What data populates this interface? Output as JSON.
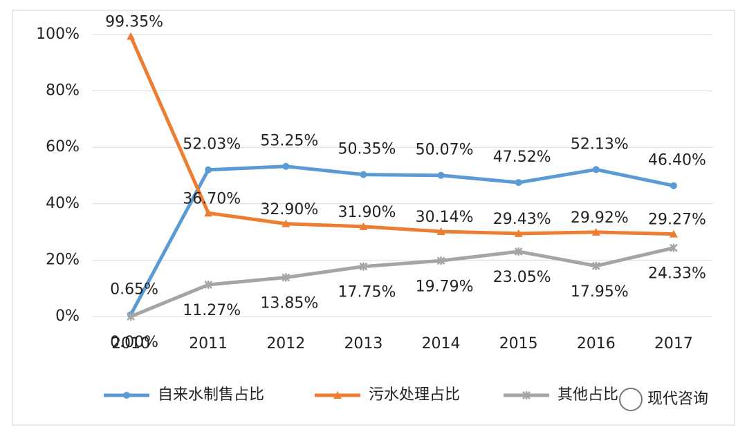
{
  "chart_data": {
    "type": "line",
    "categories": [
      "2010",
      "2011",
      "2012",
      "2013",
      "2014",
      "2015",
      "2016",
      "2017"
    ],
    "series": [
      {
        "name": "自来水制售占比",
        "color": "#5b9bd5",
        "marker": "circle",
        "values": [
          0.65,
          52.03,
          53.25,
          50.35,
          50.07,
          47.52,
          52.13,
          46.4
        ],
        "value_labels": [
          "0.65%",
          "52.03%",
          "53.25%",
          "50.35%",
          "50.07%",
          "47.52%",
          "52.13%",
          "46.40%"
        ]
      },
      {
        "name": "污水处理占比",
        "color": "#ed7d31",
        "marker": "triangle",
        "values": [
          99.35,
          36.7,
          32.9,
          31.9,
          30.14,
          29.43,
          29.92,
          29.27
        ],
        "value_labels": [
          "99.35%",
          "36.70%",
          "32.90%",
          "31.90%",
          "30.14%",
          "29.43%",
          "29.92%",
          "29.27%"
        ]
      },
      {
        "name": "其他占比",
        "color": "#a5a5a5",
        "marker": "x",
        "values": [
          0.0,
          11.27,
          13.85,
          17.75,
          19.79,
          23.05,
          17.95,
          24.33
        ],
        "value_labels": [
          "0.00%",
          "11.27%",
          "13.85%",
          "17.75%",
          "19.79%",
          "23.05%",
          "17.95%",
          "24.33%"
        ]
      }
    ],
    "ylim": [
      0,
      100
    ],
    "yticks": [
      {
        "value": 0,
        "label": "0%"
      },
      {
        "value": 20,
        "label": "20%"
      },
      {
        "value": 40,
        "label": "40%"
      },
      {
        "value": 60,
        "label": "60%"
      },
      {
        "value": 80,
        "label": "80%"
      },
      {
        "value": 100,
        "label": "100%"
      }
    ],
    "grid": true,
    "legend": "bottom",
    "watermark": "现代咨询"
  }
}
